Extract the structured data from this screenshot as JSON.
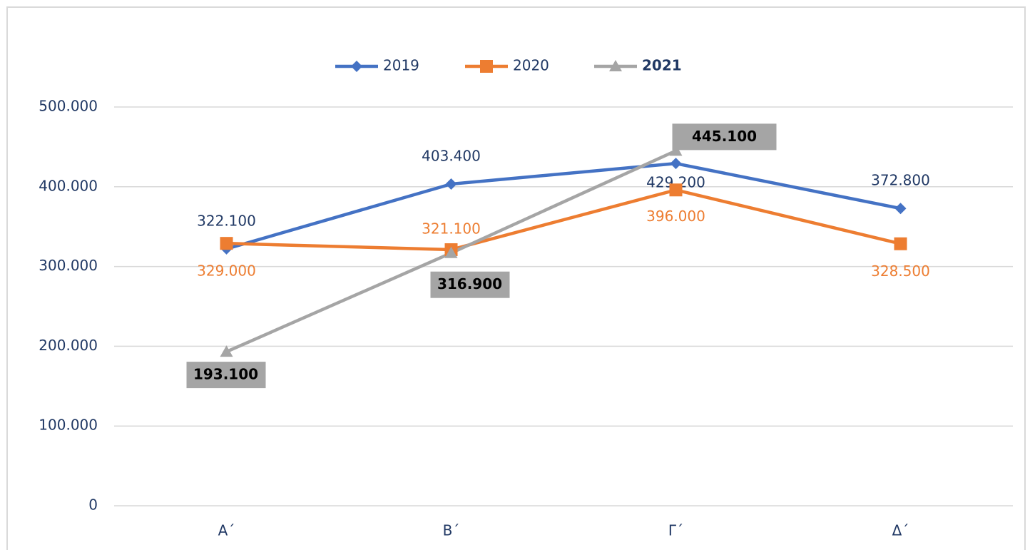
{
  "chart_data": {
    "type": "line",
    "categories": [
      "Α΄",
      "Β΄",
      "Γ΄",
      "Δ΄"
    ],
    "series": [
      {
        "name": "2019",
        "color": "#4472c4",
        "marker": "diamond",
        "values": [
          322100,
          403400,
          429200,
          372800
        ],
        "value_labels": [
          "322.100",
          "403.400",
          "429.200",
          "372.800"
        ]
      },
      {
        "name": "2020",
        "color": "#ed7d31",
        "marker": "square",
        "values": [
          329000,
          321100,
          396000,
          328500
        ],
        "value_labels": [
          "329.000",
          "321.100",
          "396.000",
          "328.500"
        ]
      },
      {
        "name": "2021",
        "color": "#a5a5a5",
        "marker": "triangle",
        "values": [
          193100,
          316900,
          445100,
          null
        ],
        "value_labels": [
          "193.100",
          "316.900",
          "445.100",
          null
        ]
      }
    ],
    "ylim": [
      0,
      500000
    ],
    "yticks": [
      0,
      {
        "value": 100000,
        "label": "100.000"
      },
      {
        "value": 200000,
        "label": "200.000"
      },
      {
        "value": 300000,
        "label": "300.000"
      },
      {
        "value": 400000,
        "label": "400.000"
      },
      {
        "value": 500000,
        "label": "500.000"
      }
    ],
    "grid": true,
    "legend": "top"
  }
}
